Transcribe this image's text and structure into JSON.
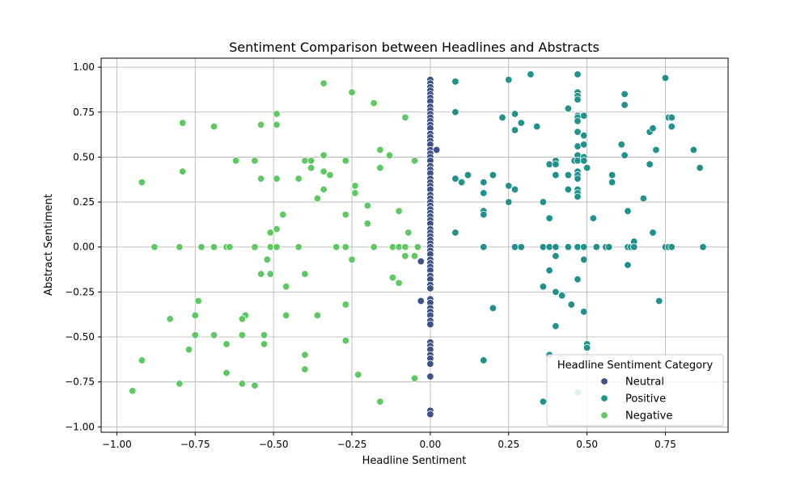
{
  "chart_data": {
    "type": "scatter",
    "title": "Sentiment Comparison between Headlines and Abstracts",
    "xlabel": "Headline Sentiment",
    "ylabel": "Abstract Sentiment",
    "xlim": [
      -1.05,
      0.95
    ],
    "ylim": [
      -1.03,
      1.05
    ],
    "x_ticks": [
      -1.0,
      -0.75,
      -0.5,
      -0.25,
      0.0,
      0.25,
      0.5,
      0.75
    ],
    "x_tick_labels": [
      "−1.00",
      "−0.75",
      "−0.50",
      "−0.25",
      "0.00",
      "0.25",
      "0.50",
      "0.75"
    ],
    "y_ticks": [
      -1.0,
      -0.75,
      -0.5,
      -0.25,
      0.0,
      0.25,
      0.5,
      0.75,
      1.0
    ],
    "y_tick_labels": [
      "−1.00",
      "−0.75",
      "−0.50",
      "−0.25",
      "0.00",
      "0.25",
      "0.50",
      "0.75",
      "1.00"
    ],
    "grid": true,
    "legend": {
      "title": "Headline Sentiment Category",
      "placement": "lower-right"
    },
    "series": [
      {
        "name": "Neutral",
        "color": "#3b528b",
        "points": [
          [
            0,
            0.93
          ],
          [
            0,
            0.91
          ],
          [
            0,
            0.89
          ],
          [
            0,
            0.87
          ],
          [
            0,
            0.85
          ],
          [
            0,
            0.83
          ],
          [
            0,
            0.81
          ],
          [
            0,
            0.78
          ],
          [
            0,
            0.76
          ],
          [
            0,
            0.74
          ],
          [
            0,
            0.72
          ],
          [
            0,
            0.7
          ],
          [
            0,
            0.68
          ],
          [
            0,
            0.66
          ],
          [
            0,
            0.63
          ],
          [
            0,
            0.61
          ],
          [
            0,
            0.59
          ],
          [
            0,
            0.57
          ],
          [
            0,
            0.54
          ],
          [
            0,
            0.52
          ],
          [
            0,
            0.5
          ],
          [
            0,
            0.48
          ],
          [
            0,
            0.45
          ],
          [
            0,
            0.43
          ],
          [
            0,
            0.41
          ],
          [
            0,
            0.38
          ],
          [
            0,
            0.36
          ],
          [
            0,
            0.34
          ],
          [
            0,
            0.32
          ],
          [
            0,
            0.29
          ],
          [
            0,
            0.27
          ],
          [
            0,
            0.25
          ],
          [
            0,
            0.23
          ],
          [
            0,
            0.21
          ],
          [
            0,
            0.19
          ],
          [
            0,
            0.17
          ],
          [
            0,
            0.15
          ],
          [
            0,
            0.13
          ],
          [
            0,
            0.1
          ],
          [
            0,
            0.08
          ],
          [
            0,
            0.06
          ],
          [
            0,
            0.04
          ],
          [
            0,
            0.02
          ],
          [
            0,
            0.0
          ],
          [
            0,
            -0.02
          ],
          [
            0,
            -0.04
          ],
          [
            0,
            -0.07
          ],
          [
            0,
            -0.09
          ],
          [
            0,
            -0.11
          ],
          [
            0,
            -0.13
          ],
          [
            0,
            -0.16
          ],
          [
            0,
            -0.18
          ],
          [
            0,
            -0.21
          ],
          [
            0,
            -0.23
          ],
          [
            0,
            -0.29
          ],
          [
            0,
            -0.31
          ],
          [
            0,
            -0.34
          ],
          [
            0,
            -0.36
          ],
          [
            0,
            -0.38
          ],
          [
            0,
            -0.41
          ],
          [
            0,
            -0.43
          ],
          [
            0,
            -0.53
          ],
          [
            0,
            -0.55
          ],
          [
            0,
            -0.57
          ],
          [
            0,
            -0.6
          ],
          [
            0,
            -0.62
          ],
          [
            0,
            -0.65
          ],
          [
            0,
            -0.72
          ],
          [
            0,
            -0.91
          ],
          [
            0,
            -0.93
          ],
          [
            0.02,
            0.54
          ],
          [
            -0.03,
            -0.08
          ],
          [
            -0.03,
            -0.3
          ]
        ]
      },
      {
        "name": "Positive",
        "color": "#21918c",
        "points": [
          [
            0.08,
            0.92
          ],
          [
            0.08,
            0.75
          ],
          [
            0.08,
            0.38
          ],
          [
            0.08,
            0.08
          ],
          [
            0.1,
            0.36
          ],
          [
            0.12,
            0.4
          ],
          [
            0.17,
            0.36
          ],
          [
            0.17,
            0.3
          ],
          [
            0.17,
            0.2
          ],
          [
            0.17,
            0.18
          ],
          [
            0.17,
            0.0
          ],
          [
            0.17,
            -0.63
          ],
          [
            0.2,
            0.4
          ],
          [
            0.2,
            -0.34
          ],
          [
            0.23,
            0.72
          ],
          [
            0.25,
            0.93
          ],
          [
            0.25,
            0.34
          ],
          [
            0.25,
            0.25
          ],
          [
            0.27,
            0.74
          ],
          [
            0.27,
            0.65
          ],
          [
            0.27,
            0.32
          ],
          [
            0.27,
            0.0
          ],
          [
            0.29,
            0.69
          ],
          [
            0.29,
            0.0
          ],
          [
            0.32,
            0.96
          ],
          [
            0.34,
            0.67
          ],
          [
            0.36,
            0.25
          ],
          [
            0.36,
            0.0
          ],
          [
            0.36,
            -0.22
          ],
          [
            0.36,
            -0.86
          ],
          [
            0.38,
            0.46
          ],
          [
            0.38,
            0.16
          ],
          [
            0.38,
            0.0
          ],
          [
            0.38,
            -0.13
          ],
          [
            0.38,
            -0.6
          ],
          [
            0.4,
            0.48
          ],
          [
            0.4,
            0.46
          ],
          [
            0.4,
            0.4
          ],
          [
            0.4,
            0.0
          ],
          [
            0.4,
            -0.05
          ],
          [
            0.4,
            -0.25
          ],
          [
            0.4,
            -0.44
          ],
          [
            0.42,
            -0.27
          ],
          [
            0.44,
            0.77
          ],
          [
            0.44,
            0.4
          ],
          [
            0.44,
            0.32
          ],
          [
            0.44,
            0.0
          ],
          [
            0.45,
            -0.32
          ],
          [
            0.46,
            0.48
          ],
          [
            0.47,
            0.96
          ],
          [
            0.47,
            0.86
          ],
          [
            0.47,
            0.84
          ],
          [
            0.47,
            0.82
          ],
          [
            0.47,
            0.73
          ],
          [
            0.47,
            0.72
          ],
          [
            0.47,
            0.7
          ],
          [
            0.47,
            0.64
          ],
          [
            0.47,
            0.56
          ],
          [
            0.47,
            0.51
          ],
          [
            0.47,
            0.48
          ],
          [
            0.47,
            0.42
          ],
          [
            0.47,
            0.4
          ],
          [
            0.47,
            0.38
          ],
          [
            0.47,
            0.32
          ],
          [
            0.47,
            0.3
          ],
          [
            0.47,
            0.28
          ],
          [
            0.47,
            0.0
          ],
          [
            0.47,
            -0.18
          ],
          [
            0.47,
            -0.81
          ],
          [
            0.49,
            0.73
          ],
          [
            0.49,
            0.62
          ],
          [
            0.49,
            0.57
          ],
          [
            0.49,
            0.5
          ],
          [
            0.49,
            0.48
          ],
          [
            0.49,
            0.0
          ],
          [
            0.49,
            -0.07
          ],
          [
            0.49,
            -0.36
          ],
          [
            0.5,
            0.44
          ],
          [
            0.5,
            -0.54
          ],
          [
            0.5,
            -0.56
          ],
          [
            0.52,
            0.16
          ],
          [
            0.53,
            0.0
          ],
          [
            0.56,
            0.0
          ],
          [
            0.57,
            0.0
          ],
          [
            0.58,
            0.4
          ],
          [
            0.58,
            0.36
          ],
          [
            0.61,
            0.57
          ],
          [
            0.62,
            0.85
          ],
          [
            0.62,
            0.79
          ],
          [
            0.62,
            0.51
          ],
          [
            0.63,
            0.2
          ],
          [
            0.63,
            0.0
          ],
          [
            0.63,
            -0.1
          ],
          [
            0.64,
            0.0
          ],
          [
            0.65,
            0.02
          ],
          [
            0.65,
            0.03
          ],
          [
            0.65,
            0.0
          ],
          [
            0.68,
            0.27
          ],
          [
            0.7,
            0.64
          ],
          [
            0.7,
            0.46
          ],
          [
            0.71,
            0.66
          ],
          [
            0.71,
            0.08
          ],
          [
            0.72,
            0.54
          ],
          [
            0.73,
            -0.3
          ],
          [
            0.75,
            0.94
          ],
          [
            0.75,
            0.0
          ],
          [
            0.76,
            0.72
          ],
          [
            0.76,
            0.0
          ],
          [
            0.77,
            0.72
          ],
          [
            0.77,
            0.67
          ],
          [
            0.77,
            0.0
          ],
          [
            0.84,
            0.54
          ],
          [
            0.86,
            0.44
          ],
          [
            0.87,
            0.0
          ]
        ]
      },
      {
        "name": "Negative",
        "color": "#5ec962",
        "points": [
          [
            -0.34,
            0.91
          ],
          [
            -0.25,
            0.86
          ],
          [
            -0.18,
            0.8
          ],
          [
            -0.08,
            0.72
          ],
          [
            -0.79,
            0.69
          ],
          [
            -0.69,
            0.67
          ],
          [
            -0.54,
            0.68
          ],
          [
            -0.49,
            0.74
          ],
          [
            -0.49,
            0.68
          ],
          [
            -0.16,
            0.54
          ],
          [
            -0.34,
            0.51
          ],
          [
            -0.13,
            0.51
          ],
          [
            -0.62,
            0.48
          ],
          [
            -0.56,
            0.48
          ],
          [
            -0.4,
            0.48
          ],
          [
            -0.38,
            0.48
          ],
          [
            -0.27,
            0.48
          ],
          [
            -0.05,
            0.48
          ],
          [
            -0.38,
            0.44
          ],
          [
            -0.16,
            0.44
          ],
          [
            -0.79,
            0.42
          ],
          [
            -0.34,
            0.42
          ],
          [
            -0.32,
            0.4
          ],
          [
            -0.54,
            0.38
          ],
          [
            -0.49,
            0.38
          ],
          [
            -0.42,
            0.38
          ],
          [
            -0.92,
            0.36
          ],
          [
            -0.24,
            0.34
          ],
          [
            -0.34,
            0.32
          ],
          [
            -0.24,
            0.3
          ],
          [
            -0.36,
            0.27
          ],
          [
            -0.2,
            0.23
          ],
          [
            -0.1,
            0.2
          ],
          [
            -0.27,
            0.18
          ],
          [
            -0.47,
            0.18
          ],
          [
            -0.2,
            0.13
          ],
          [
            -0.49,
            0.1
          ],
          [
            -0.51,
            0.08
          ],
          [
            -0.07,
            0.08
          ],
          [
            -0.88,
            0.0
          ],
          [
            -0.8,
            0.0
          ],
          [
            -0.73,
            0.0
          ],
          [
            -0.69,
            0.0
          ],
          [
            -0.65,
            0.0
          ],
          [
            -0.64,
            0.0
          ],
          [
            -0.56,
            0.0
          ],
          [
            -0.51,
            0.0
          ],
          [
            -0.49,
            0.0
          ],
          [
            -0.42,
            0.0
          ],
          [
            -0.3,
            0.0
          ],
          [
            -0.27,
            0.0
          ],
          [
            -0.18,
            0.0
          ],
          [
            -0.12,
            0.0
          ],
          [
            -0.1,
            0.0
          ],
          [
            -0.08,
            0.0
          ],
          [
            -0.04,
            0.0
          ],
          [
            -0.52,
            -0.07
          ],
          [
            -0.25,
            -0.07
          ],
          [
            -0.08,
            -0.05
          ],
          [
            -0.05,
            -0.05
          ],
          [
            -0.54,
            -0.15
          ],
          [
            -0.51,
            -0.15
          ],
          [
            -0.4,
            -0.15
          ],
          [
            -0.12,
            -0.17
          ],
          [
            -0.1,
            -0.2
          ],
          [
            -0.46,
            -0.22
          ],
          [
            -0.74,
            -0.3
          ],
          [
            -0.27,
            -0.32
          ],
          [
            -0.75,
            -0.38
          ],
          [
            -0.59,
            -0.38
          ],
          [
            -0.46,
            -0.38
          ],
          [
            -0.36,
            -0.38
          ],
          [
            -0.83,
            -0.4
          ],
          [
            -0.6,
            -0.4
          ],
          [
            -0.75,
            -0.49
          ],
          [
            -0.69,
            -0.49
          ],
          [
            -0.6,
            -0.49
          ],
          [
            -0.53,
            -0.49
          ],
          [
            -0.27,
            -0.52
          ],
          [
            -0.65,
            -0.54
          ],
          [
            -0.53,
            -0.54
          ],
          [
            -0.77,
            -0.57
          ],
          [
            -0.4,
            -0.6
          ],
          [
            -0.92,
            -0.63
          ],
          [
            -0.4,
            -0.68
          ],
          [
            -0.65,
            -0.7
          ],
          [
            -0.23,
            -0.71
          ],
          [
            -0.05,
            -0.73
          ],
          [
            -0.8,
            -0.76
          ],
          [
            -0.6,
            -0.76
          ],
          [
            -0.56,
            -0.77
          ],
          [
            -0.95,
            -0.8
          ],
          [
            -0.16,
            -0.86
          ]
        ]
      }
    ]
  }
}
